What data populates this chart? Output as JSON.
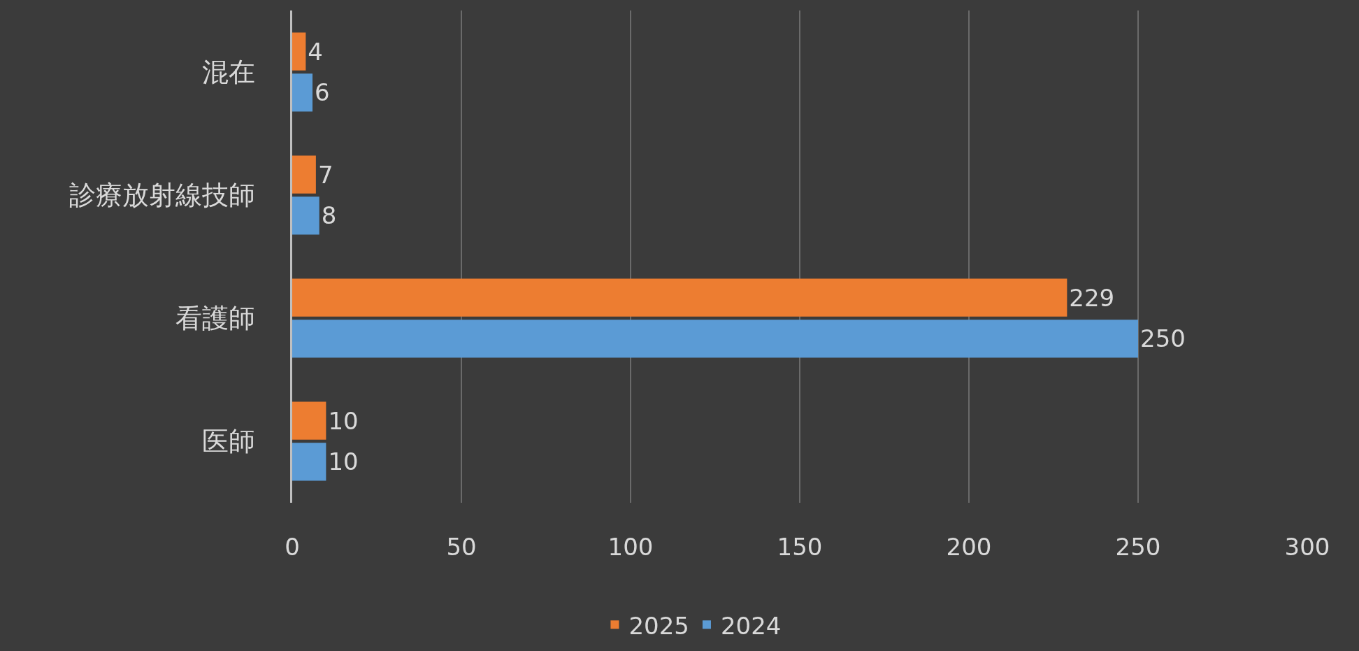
{
  "chart_data": {
    "type": "bar",
    "orientation": "horizontal",
    "categories": [
      "混在",
      "診療放射線技師",
      "看護師",
      "医師"
    ],
    "series": [
      {
        "name": "2025",
        "color": "#ed7d31",
        "values": [
          4,
          7,
          229,
          10
        ]
      },
      {
        "name": "2024",
        "color": "#5b9bd5",
        "values": [
          6,
          8,
          250,
          10
        ]
      }
    ],
    "xlim": [
      0,
      300
    ],
    "xticks": [
      0,
      50,
      100,
      150,
      200,
      250,
      300
    ],
    "grid": "x",
    "legend": "bottom",
    "data_labels": true
  }
}
